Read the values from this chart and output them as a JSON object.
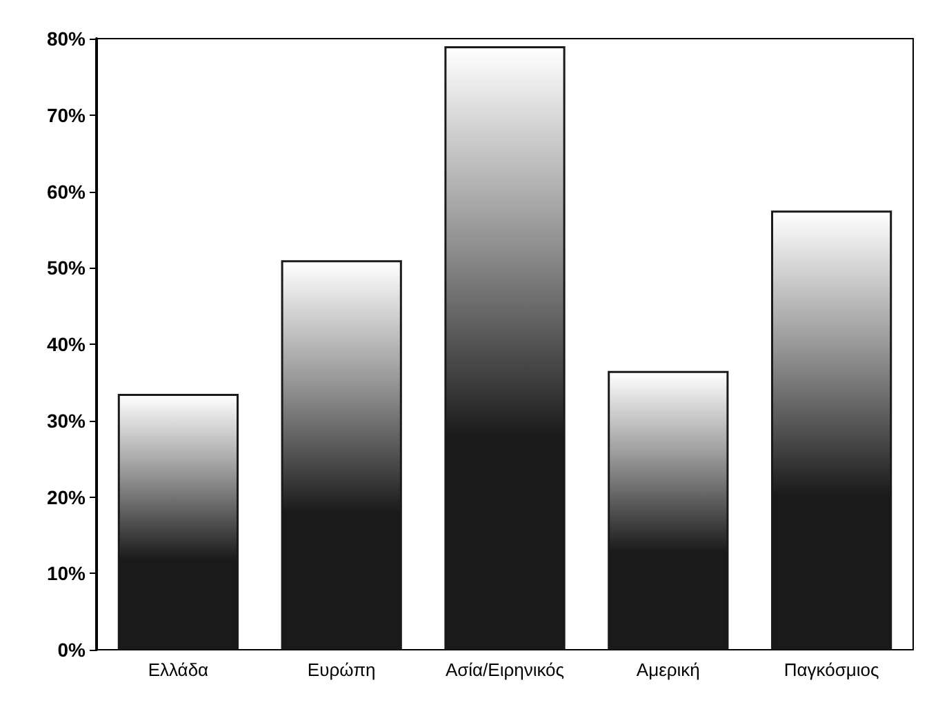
{
  "chart_data": {
    "type": "bar",
    "categories": [
      "Ελλάδα",
      "Ευρώπη",
      "Ασία/Ειρηνικός",
      "Αμερική",
      "Παγκόσμιος"
    ],
    "values": [
      33.5,
      51,
      79,
      36.5,
      57.5
    ],
    "color": "#1a1a1a",
    "ylim": [
      0,
      80
    ],
    "yticks": [
      {
        "value": 0,
        "label": "0%"
      },
      {
        "value": 10,
        "label": "10%"
      },
      {
        "value": 20,
        "label": "20%"
      },
      {
        "value": 30,
        "label": "30%"
      },
      {
        "value": 40,
        "label": "40%"
      },
      {
        "value": 50,
        "label": "50%"
      },
      {
        "value": 60,
        "label": "60%"
      },
      {
        "value": 70,
        "label": "70%"
      },
      {
        "value": 80,
        "label": "80%"
      }
    ],
    "grid": false
  }
}
